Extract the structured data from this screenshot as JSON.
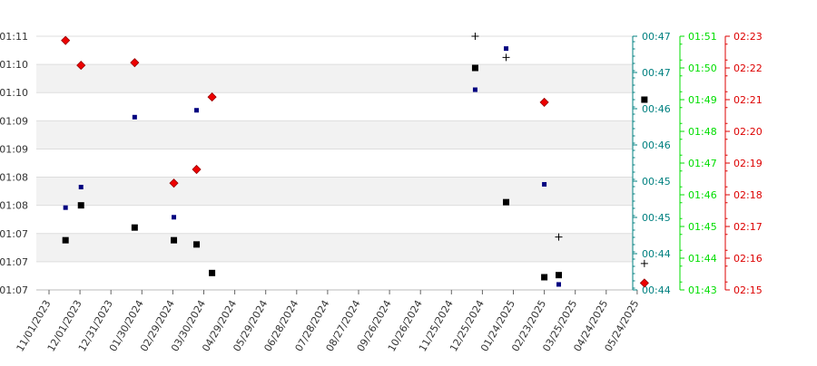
{
  "chart_data": {
    "type": "scatter",
    "grid": "horizontal bands",
    "legend": "none",
    "x_ticks": [
      "11/01/2023",
      "12/01/2023",
      "12/31/2023",
      "01/30/2024",
      "02/29/2024",
      "03/30/2024",
      "04/29/2024",
      "05/29/2024",
      "06/28/2024",
      "07/28/2024",
      "08/27/2024",
      "09/26/2024",
      "10/26/2024",
      "11/25/2024",
      "12/25/2024",
      "01/24/2025",
      "02/23/2025",
      "03/25/2025",
      "04/24/2025",
      "05/24/2025"
    ],
    "axes": {
      "left": {
        "tick_labels": [
          "01:11",
          "01:10",
          "01:10",
          "01:09",
          "01:09",
          "01:08",
          "01:08",
          "01:07",
          "01:07",
          "01:07"
        ],
        "color": "#333333"
      },
      "right1": {
        "tick_labels": [
          "00:47",
          "00:47",
          "00:46",
          "00:46",
          "00:45",
          "00:45",
          "00:44",
          "00:44"
        ],
        "color": "#008080"
      },
      "right2": {
        "tick_labels": [
          "01:51",
          "01:50",
          "01:49",
          "01:48",
          "01:47",
          "01:46",
          "01:45",
          "01:44",
          "01:43"
        ],
        "color": "#00dd00"
      },
      "right3": {
        "tick_labels": [
          "02:23",
          "02:22",
          "02:21",
          "02:20",
          "02:19",
          "02:18",
          "02:17",
          "02:16",
          "02:15"
        ],
        "color": "#dd0000"
      }
    },
    "series": [
      {
        "axis": "left",
        "marker": "square",
        "color": "#000000",
        "points": [
          {
            "x": "11/17/2023",
            "y": "01:07:47"
          },
          {
            "x": "12/02/2023",
            "y": "01:08:20"
          },
          {
            "x": "01/23/2024",
            "y": "01:07:59"
          },
          {
            "x": "03/01/2024",
            "y": "01:07:47"
          },
          {
            "x": "03/23/2024",
            "y": "01:07:43"
          },
          {
            "x": "04/07/2024",
            "y": "01:07:16"
          },
          {
            "x": "12/18/2024",
            "y": "01:10:30"
          },
          {
            "x": "01/17/2025",
            "y": "01:08:23"
          },
          {
            "x": "02/23/2025",
            "y": "01:07:12"
          },
          {
            "x": "03/09/2025",
            "y": "01:07:14"
          },
          {
            "x": "05/31/2025",
            "y": "01:10:00"
          }
        ]
      },
      {
        "axis": "right1",
        "marker": "small-square",
        "color": "#000080",
        "points": [
          {
            "x": "11/17/2023",
            "y": "00:45:00"
          },
          {
            "x": "12/02/2023",
            "y": "00:45:15"
          },
          {
            "x": "01/23/2024",
            "y": "00:46:06"
          },
          {
            "x": "03/01/2024",
            "y": "00:44:53"
          },
          {
            "x": "03/23/2024",
            "y": "00:46:11"
          },
          {
            "x": "12/18/2024",
            "y": "00:46:26"
          },
          {
            "x": "01/17/2025",
            "y": "00:46:56"
          },
          {
            "x": "02/23/2025",
            "y": "00:45:17"
          },
          {
            "x": "03/09/2025",
            "y": "00:44:04"
          }
        ]
      },
      {
        "axis": "right2",
        "marker": "plus",
        "color": "#000000",
        "points": [
          {
            "x": "12/18/2024",
            "y": "01:51:00"
          },
          {
            "x": "01/17/2025",
            "y": "01:50:20"
          },
          {
            "x": "03/09/2025",
            "y": "01:44:40"
          },
          {
            "x": "05/31/2025",
            "y": "01:43:50"
          }
        ]
      },
      {
        "axis": "right3",
        "marker": "diamond",
        "color": "#ee0000",
        "points": [
          {
            "x": "11/17/2023",
            "y": "02:22:52"
          },
          {
            "x": "12/02/2023",
            "y": "02:22:05"
          },
          {
            "x": "01/23/2024",
            "y": "02:22:10"
          },
          {
            "x": "03/01/2024",
            "y": "02:18:22"
          },
          {
            "x": "03/23/2024",
            "y": "02:18:48"
          },
          {
            "x": "04/07/2024",
            "y": "02:21:05"
          },
          {
            "x": "02/23/2025",
            "y": "02:20:55"
          },
          {
            "x": "05/31/2025",
            "y": "02:15:13"
          }
        ]
      }
    ]
  }
}
